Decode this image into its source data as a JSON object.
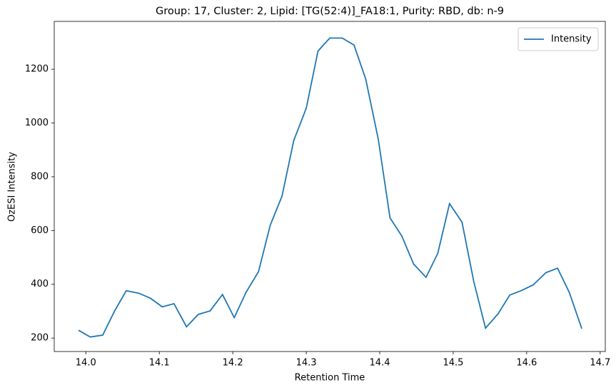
{
  "chart_data": {
    "type": "line",
    "title": "Group: 17, Cluster: 2, Lipid: [TG(52:4)]_FA18:1, Purity: RBD, db: n-9",
    "xlabel": "Retention Time",
    "ylabel": "OzESI Intensity",
    "x": [
      13.99,
      14.006,
      14.023,
      14.039,
      14.055,
      14.072,
      14.088,
      14.104,
      14.12,
      14.137,
      14.153,
      14.169,
      14.186,
      14.202,
      14.218,
      14.235,
      14.251,
      14.267,
      14.283,
      14.3,
      14.316,
      14.332,
      14.349,
      14.365,
      14.381,
      14.398,
      14.414,
      14.43,
      14.446,
      14.463,
      14.479,
      14.495,
      14.512,
      14.528,
      14.544,
      14.561,
      14.577,
      14.593,
      14.609,
      14.626,
      14.642,
      14.658,
      14.675
    ],
    "series": [
      {
        "name": "Intensity",
        "color": "#1f77b4",
        "values": [
          229,
          204,
          211,
          300,
          376,
          367,
          348,
          316,
          328,
          242,
          288,
          301,
          362,
          276,
          370,
          447,
          620,
          728,
          935,
          1055,
          1268,
          1316,
          1316,
          1290,
          1163,
          940,
          647,
          580,
          476,
          426,
          515,
          700,
          631,
          410,
          237,
          290,
          360,
          377,
          398,
          443,
          460,
          370,
          235
        ]
      }
    ],
    "xlim": [
      13.957,
      14.707
    ],
    "xticks": [
      {
        "value": 14.0,
        "label": "14.0"
      },
      {
        "value": 14.1,
        "label": "14.1"
      },
      {
        "value": 14.2,
        "label": "14.2"
      },
      {
        "value": 14.3,
        "label": "14.3"
      },
      {
        "value": 14.4,
        "label": "14.4"
      },
      {
        "value": 14.5,
        "label": "14.5"
      },
      {
        "value": 14.6,
        "label": "14.6"
      },
      {
        "value": 14.7,
        "label": "14.7"
      }
    ],
    "ylim": [
      150,
      1378
    ],
    "yticks": [
      200,
      400,
      600,
      800,
      1000,
      1200
    ],
    "legend": "upper right"
  }
}
